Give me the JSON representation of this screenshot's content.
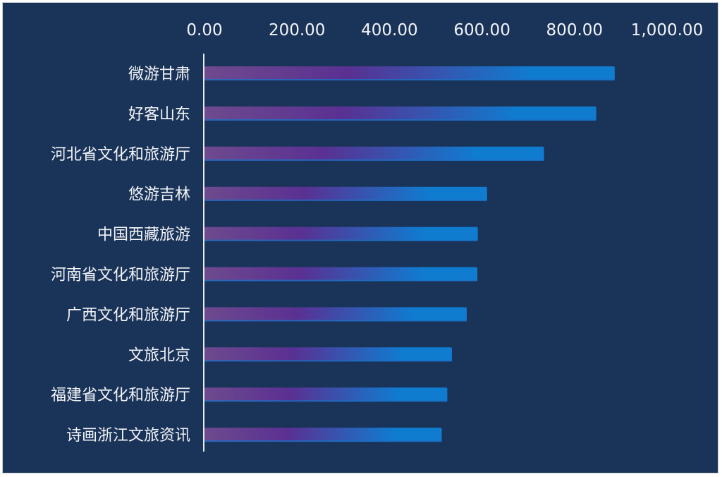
{
  "chart_data": {
    "type": "bar",
    "orientation": "horizontal",
    "x_axis_position": "top",
    "xlim": [
      0,
      1000
    ],
    "x_ticks": [
      "0.00",
      "200.00",
      "400.00",
      "600.00",
      "800.00",
      "1,000.00"
    ],
    "x_tick_values": [
      0,
      200,
      400,
      600,
      800,
      1000
    ],
    "categories": [
      "微游甘肃",
      "好客山东",
      "河北省文化和旅游厅",
      "悠游吉林",
      "中国西藏旅游",
      "河南省文化和旅游厅",
      "广西文化和旅游厅",
      "文旅北京",
      "福建省文化和旅游厅",
      "诗画浙江文旅资讯"
    ],
    "values": [
      887,
      847,
      734,
      611,
      591,
      590,
      567,
      535,
      525,
      513
    ],
    "title": "",
    "xlabel": "",
    "ylabel": "",
    "grid": false,
    "legend": "none",
    "colors": {
      "background": "#1a3358",
      "bar_start": "#6e4a8e",
      "bar_mid": "#5a3092",
      "bar_end": "#0f7cd0",
      "axis": "#e8ecf2",
      "text": "#f2f4f8"
    }
  }
}
